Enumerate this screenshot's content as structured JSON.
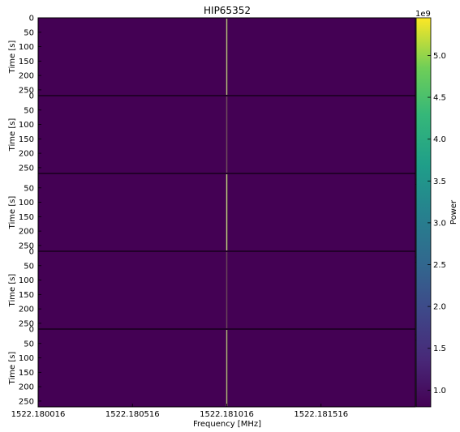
{
  "chart_data": {
    "type": "heatmap",
    "title": "HIP65352",
    "xlabel": "Frequency [MHz]",
    "ylabel": "Time [s]",
    "x_ticks": [
      "1522.180016",
      "1522.180516",
      "1522.181016",
      "1522.181516"
    ],
    "x_tick_values": [
      1522.180016,
      1522.180516,
      1522.181016,
      1522.181516
    ],
    "xlim": [
      1522.180016,
      1522.182016
    ],
    "colorbar": {
      "label": "Power",
      "offset_label": "1e9",
      "ticks": [
        "1.0",
        "1.5",
        "2.0",
        "2.5",
        "3.0",
        "3.5",
        "4.0",
        "4.5",
        "5.0"
      ],
      "tick_values": [
        1.0,
        1.5,
        2.0,
        2.5,
        3.0,
        3.5,
        4.0,
        4.5,
        5.0
      ],
      "range": [
        0.8,
        5.45
      ],
      "colormap": "viridis"
    },
    "panels": [
      {
        "name": "panel-1",
        "ylim": [
          0,
          270
        ],
        "yticks": [
          "0",
          "50",
          "100",
          "150",
          "200",
          "250"
        ],
        "ytick_values": [
          0,
          50,
          100,
          150,
          200,
          250
        ],
        "signal": {
          "frequency": 1522.181016,
          "brightness": 0.65
        }
      },
      {
        "name": "panel-2",
        "ylim": [
          0,
          270
        ],
        "yticks": [
          "0",
          "50",
          "100",
          "150",
          "200",
          "250"
        ],
        "ytick_values": [
          0,
          50,
          100,
          150,
          200,
          250
        ],
        "signal": {
          "frequency": 1522.181016,
          "brightness": 0.15
        }
      },
      {
        "name": "panel-3",
        "ylim": [
          0,
          270
        ],
        "yticks": [
          "50",
          "100",
          "150",
          "200",
          "250"
        ],
        "ytick_values": [
          50,
          100,
          150,
          200,
          250
        ],
        "overlap_label": "20",
        "signal": {
          "frequency": 1522.181016,
          "brightness": 0.75
        }
      },
      {
        "name": "panel-4",
        "ylim": [
          0,
          270
        ],
        "yticks": [
          "0",
          "50",
          "100",
          "150",
          "200",
          "250"
        ],
        "ytick_values": [
          0,
          50,
          100,
          150,
          200,
          250
        ],
        "overlap_label": "20",
        "signal": {
          "frequency": 1522.181016,
          "brightness": 0.12
        }
      },
      {
        "name": "panel-5",
        "ylim": [
          0,
          270
        ],
        "yticks": [
          "0",
          "50",
          "100",
          "150",
          "200",
          "250"
        ],
        "ytick_values": [
          0,
          50,
          100,
          150,
          200,
          250
        ],
        "overlap_label": "20",
        "signal": {
          "frequency": 1522.181016,
          "brightness": 0.6
        }
      }
    ],
    "background_color": "#440154",
    "signal_color": "#fde725",
    "grid": false
  }
}
